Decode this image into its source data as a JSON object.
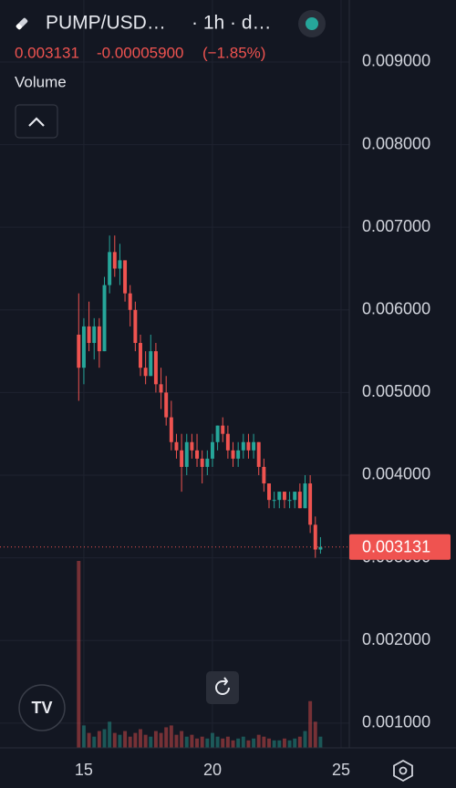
{
  "header": {
    "symbol": "PUMP/USD…",
    "interval": "· 1h · d…",
    "change": {
      "value": -5.9e-05,
      "label": "-0.00005900"
    },
    "change_pct": {
      "value": -1.85,
      "label": "(−1.85%)"
    }
  },
  "chart_data": {
    "type": "candlestick",
    "volume_title": "Volume",
    "up_color": "#26a69a",
    "down_color": "#ef5350",
    "grid": true,
    "last_price": 0.003131,
    "x": [
      14.8,
      15.0,
      15.2,
      15.4,
      15.6,
      15.8,
      16.0,
      16.2,
      16.4,
      16.6,
      16.8,
      17.0,
      17.2,
      17.4,
      17.6,
      17.8,
      18.0,
      18.2,
      18.4,
      18.6,
      18.8,
      19.0,
      19.2,
      19.4,
      19.6,
      19.8,
      20.0,
      20.2,
      20.4,
      20.6,
      20.8,
      21.0,
      21.2,
      21.4,
      21.6,
      21.8,
      22.0,
      22.2,
      22.4,
      22.6,
      22.8,
      23.0,
      23.2,
      23.4,
      23.6,
      23.8,
      24.0,
      24.2
    ],
    "open": [
      0.0057,
      0.0053,
      0.0058,
      0.0056,
      0.0058,
      0.0055,
      0.0063,
      0.0067,
      0.0065,
      0.0066,
      0.0062,
      0.006,
      0.0056,
      0.0053,
      0.0052,
      0.0055,
      0.0051,
      0.005,
      0.0047,
      0.0044,
      0.0043,
      0.0041,
      0.0044,
      0.0043,
      0.0042,
      0.0041,
      0.0042,
      0.0044,
      0.0046,
      0.0045,
      0.0043,
      0.0042,
      0.0043,
      0.0044,
      0.0043,
      0.0044,
      0.0041,
      0.0039,
      0.0037,
      0.0037,
      0.0038,
      0.0037,
      0.0037,
      0.0038,
      0.0036,
      0.0039,
      0.0034,
      0.0031
    ],
    "high": [
      0.0062,
      0.0059,
      0.0061,
      0.0059,
      0.0059,
      0.0064,
      0.0069,
      0.0069,
      0.0068,
      0.0066,
      0.0063,
      0.0061,
      0.0057,
      0.0055,
      0.0057,
      0.0056,
      0.0053,
      0.0052,
      0.0049,
      0.0045,
      0.0045,
      0.0045,
      0.0045,
      0.0045,
      0.0043,
      0.0043,
      0.0045,
      0.0046,
      0.0047,
      0.0046,
      0.0044,
      0.0044,
      0.0045,
      0.0045,
      0.0045,
      0.0044,
      0.0042,
      0.0039,
      0.0038,
      0.0038,
      0.0038,
      0.0038,
      0.0038,
      0.0039,
      0.004,
      0.004,
      0.0035,
      0.00325
    ],
    "low": [
      0.0049,
      0.0051,
      0.0055,
      0.0054,
      0.0053,
      0.0055,
      0.0062,
      0.0064,
      0.0063,
      0.0061,
      0.0058,
      0.0055,
      0.0052,
      0.0051,
      0.0052,
      0.005,
      0.0048,
      0.0046,
      0.0043,
      0.0042,
      0.0038,
      0.004,
      0.0042,
      0.0041,
      0.0039,
      0.004,
      0.0041,
      0.0043,
      0.0044,
      0.0042,
      0.0041,
      0.0041,
      0.0042,
      0.0042,
      0.0042,
      0.004,
      0.0038,
      0.0036,
      0.0036,
      0.0036,
      0.0036,
      0.0036,
      0.0036,
      0.0036,
      0.0036,
      0.0033,
      0.003,
      0.00305
    ],
    "close": [
      0.0053,
      0.0058,
      0.0056,
      0.0058,
      0.0055,
      0.0063,
      0.0067,
      0.0065,
      0.0066,
      0.0062,
      0.006,
      0.0056,
      0.0053,
      0.0052,
      0.0055,
      0.0051,
      0.005,
      0.0047,
      0.0044,
      0.0043,
      0.0041,
      0.0044,
      0.0043,
      0.0042,
      0.0041,
      0.0042,
      0.0044,
      0.0046,
      0.0045,
      0.0043,
      0.0042,
      0.0043,
      0.0044,
      0.0043,
      0.0044,
      0.0041,
      0.0039,
      0.0037,
      0.0037,
      0.0038,
      0.0037,
      0.0037,
      0.0038,
      0.0036,
      0.0039,
      0.0034,
      0.0031,
      0.003131
    ],
    "volume": [
      100,
      12,
      8,
      6,
      9,
      10,
      14,
      8,
      7,
      9,
      6,
      8,
      10,
      7,
      6,
      9,
      8,
      11,
      12,
      7,
      9,
      6,
      7,
      5,
      6,
      5,
      8,
      6,
      5,
      6,
      4,
      5,
      6,
      4,
      5,
      7,
      6,
      5,
      4,
      4,
      5,
      4,
      5,
      6,
      9,
      25,
      14,
      6
    ],
    "xlim": [
      11.74,
      25.32
    ],
    "xticks": [
      15,
      20,
      25
    ],
    "ylim": [
      0.0007,
      0.00975
    ],
    "yticks": [
      {
        "value": 0.001,
        "label": "0.001000"
      },
      {
        "value": 0.002,
        "label": "0.002000"
      },
      {
        "value": 0.003,
        "label": "0.003000"
      },
      {
        "value": 0.004,
        "label": "0.004000"
      },
      {
        "value": 0.005,
        "label": "0.005000"
      },
      {
        "value": 0.006,
        "label": "0.006000"
      },
      {
        "value": 0.007,
        "label": "0.007000"
      },
      {
        "value": 0.008,
        "label": "0.008000"
      },
      {
        "value": 0.009,
        "label": "0.009000"
      }
    ]
  }
}
